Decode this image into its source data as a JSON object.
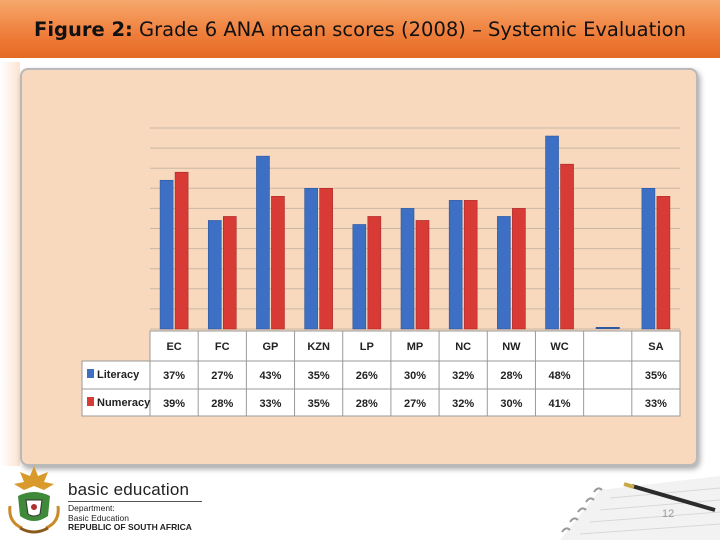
{
  "slide": {
    "title_bold": "Figure 2:",
    "title_rest": " Grade 6 ANA mean scores (2008) – Systemic Evaluation",
    "page_number": "12"
  },
  "footer": {
    "brand": "basic education",
    "dept_line1": "Department:",
    "dept_line2": "Basic Education",
    "dept_line3": "REPUBLIC OF SOUTH AFRICA"
  },
  "colors": {
    "literacy": "#3d6fc4",
    "numeracy": "#d83a36",
    "panel": "#f9d9bd",
    "title_bar": "#ef7d3a"
  },
  "chart_data": {
    "type": "bar",
    "categories": [
      "EC",
      "FC",
      "GP",
      "KZN",
      "LP",
      "MP",
      "NC",
      "NW",
      "WC",
      "",
      "SA"
    ],
    "series": [
      {
        "name": "Literacy",
        "values": [
          37,
          27,
          43,
          35,
          26,
          30,
          32,
          28,
          48,
          null,
          35
        ],
        "labels": [
          "37%",
          "27%",
          "43%",
          "35%",
          "26%",
          "30%",
          "32%",
          "28%",
          "48%",
          "",
          "35%"
        ]
      },
      {
        "name": "Numeracy",
        "values": [
          39,
          28,
          33,
          35,
          28,
          27,
          32,
          30,
          41,
          null,
          33
        ],
        "labels": [
          "39%",
          "28%",
          "33%",
          "35%",
          "28%",
          "27%",
          "32%",
          "30%",
          "41%",
          "",
          "33%"
        ]
      }
    ],
    "ylim": [
      0,
      50
    ],
    "grid": true,
    "legend": "data table rows"
  }
}
